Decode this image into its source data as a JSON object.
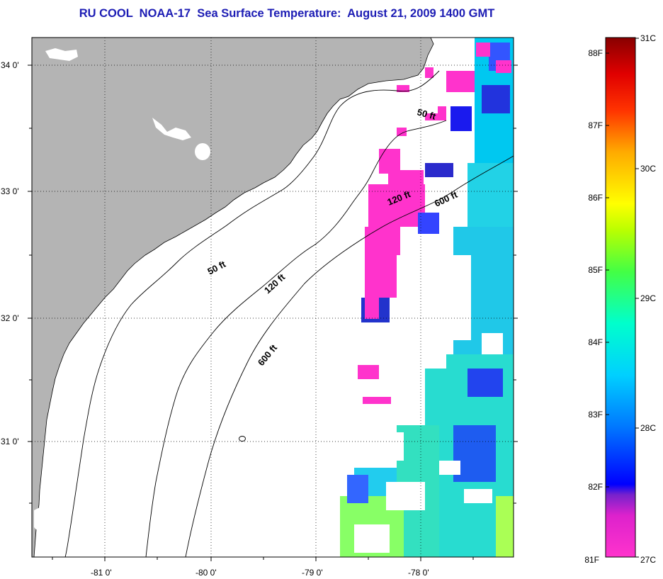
{
  "title": "RU COOL  NOAA-17  Sea Surface Temperature:  August 21, 2009 1400 GMT",
  "axes": {
    "lat_labels": [
      "34 0'",
      "33 0'",
      "32 0'",
      "31 0'"
    ],
    "lon_labels": [
      "-81 0'",
      "-80 0'",
      "-79 0'",
      "-78 0'"
    ]
  },
  "contours": {
    "labels": [
      {
        "text": "50 ft",
        "id": "contour-label-50ft-north"
      },
      {
        "text": "120 ft",
        "id": "contour-label-120ft-north"
      },
      {
        "text": "600 ft",
        "id": "contour-label-600ft-north"
      },
      {
        "text": "50 ft",
        "id": "contour-label-50ft-south"
      },
      {
        "text": "120 ft",
        "id": "contour-label-120ft-south"
      },
      {
        "text": "600 ft",
        "id": "contour-label-600ft-south"
      }
    ]
  },
  "colorbar": {
    "fahrenheit_labels": [
      "88F",
      "87F",
      "86F",
      "85F",
      "84F",
      "83F",
      "82F",
      "81F"
    ],
    "celsius_labels": [
      "31C",
      "30C",
      "29C",
      "28C",
      "27C"
    ],
    "colors": [
      "#ff33cc",
      "#cc22dd",
      "#7722cc",
      "#0000ff",
      "#0066ff",
      "#00aaff",
      "#00e6e6",
      "#00ff99",
      "#66ff33",
      "#ccff00",
      "#ffff00",
      "#ffcc00",
      "#ff8800",
      "#ff3300",
      "#dd0000",
      "#880000"
    ]
  },
  "colors": {
    "land": "#b4b4b4",
    "water": "#ffffff",
    "title": "#1c1cb4",
    "cloud_missing": "#ffffff"
  }
}
